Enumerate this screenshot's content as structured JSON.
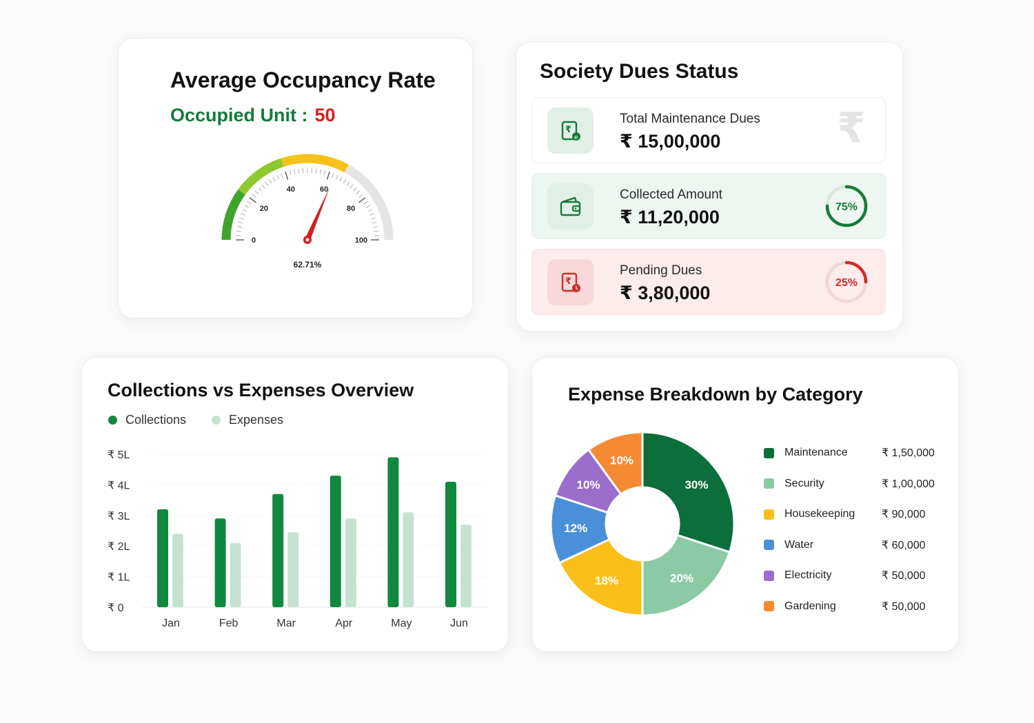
{
  "occupancy": {
    "title": "Average Occupancy Rate",
    "occupied_label": "Occupied Unit :",
    "occupied_value": "50",
    "gauge_value": 62.71,
    "gauge_text": "62.71%",
    "gauge_ticks": [
      "0",
      "20",
      "40",
      "60",
      "80",
      "100"
    ]
  },
  "dues": {
    "title": "Society Dues Status",
    "rows": [
      {
        "label": "Total Maintenance Dues",
        "amount": "₹ 15,00,000"
      },
      {
        "label": "Collected Amount",
        "amount": "₹ 11,20,000",
        "percent_text": "75%",
        "percent": 75
      },
      {
        "label": "Pending Dues",
        "amount": "₹ 3,80,000",
        "percent_text": "25%",
        "percent": 25
      }
    ],
    "watermark": "₹"
  },
  "collections": {
    "title": "Collections vs Expenses Overview",
    "legend": [
      "Collections",
      "Expenses"
    ]
  },
  "expense": {
    "title": "Expense Breakdown by Category",
    "items": [
      {
        "name": "Maintenance",
        "amount": "₹ 1,50,000"
      },
      {
        "name": "Security",
        "amount": "₹ 1,00,000"
      },
      {
        "name": "Housekeeping",
        "amount": "₹ 90,000"
      },
      {
        "name": "Water",
        "amount": "₹ 60,000"
      },
      {
        "name": "Electricity",
        "amount": "₹ 50,000"
      },
      {
        "name": "Gardening",
        "amount": "₹ 50,000"
      }
    ]
  },
  "colors": {
    "collections": "#10893e",
    "expenses": "#c5e2d0",
    "maintenance": "#0b6e3b",
    "security": "#8ccaa5",
    "housekeeping": "#fbbf1a",
    "water": "#4a90d9",
    "electricity": "#9b6dcc",
    "gardening": "#f58a33"
  },
  "chart_data": [
    {
      "type": "bar",
      "title": "Collections vs Expenses Overview",
      "categories": [
        "Jan",
        "Feb",
        "Mar",
        "Apr",
        "May",
        "Jun"
      ],
      "y_tick_labels": [
        "₹ 0",
        "₹ 1L",
        "₹ 2L",
        "₹ 3L",
        "₹ 4L",
        "₹ 5L"
      ],
      "ylim": [
        0,
        5
      ],
      "series": [
        {
          "name": "Collections",
          "values": [
            3.2,
            2.9,
            3.7,
            4.3,
            4.9,
            4.1
          ]
        },
        {
          "name": "Expenses",
          "values": [
            2.4,
            2.1,
            2.45,
            2.9,
            3.1,
            2.7
          ]
        }
      ],
      "legend_position": "top-left",
      "grid": true
    },
    {
      "type": "pie",
      "title": "Expense Breakdown by Category",
      "categories": [
        "Maintenance",
        "Security",
        "Housekeeping",
        "Water",
        "Electricity",
        "Gardening"
      ],
      "values": [
        30,
        20,
        18,
        12,
        10,
        10
      ],
      "labels": [
        "30%",
        "20%",
        "18%",
        "12%",
        "10%",
        "10%"
      ],
      "donut": true,
      "legend_position": "right"
    }
  ]
}
